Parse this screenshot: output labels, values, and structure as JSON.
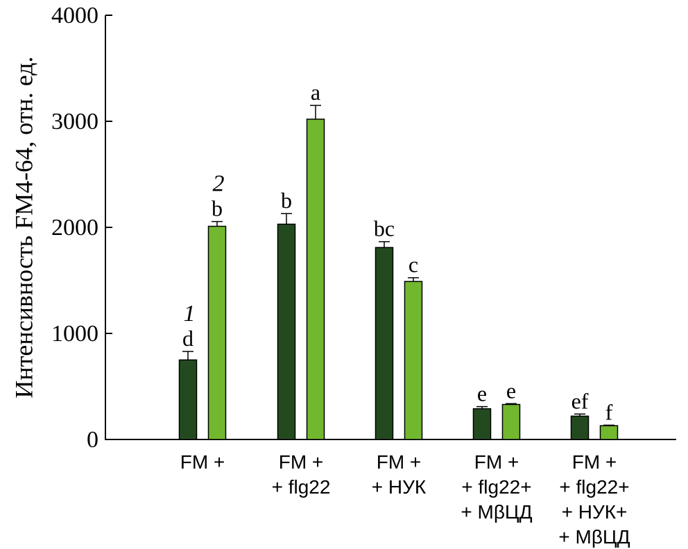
{
  "chart_data": {
    "type": "bar",
    "ylabel": "Интенсивность FM4-64, отн. ед.",
    "ylim": [
      0,
      4000
    ],
    "yticks": [
      "0",
      "1000",
      "2000",
      "3000",
      "4000"
    ],
    "categories": [
      [
        "FM +"
      ],
      [
        "FM +",
        "+ flg22"
      ],
      [
        "FM +",
        "+ НУК"
      ],
      [
        "FM +",
        "+ flg22+",
        "+ MβЦД"
      ],
      [
        "FM +",
        "+ flg22+",
        "+ НУК+",
        "+ MβЦД"
      ]
    ],
    "series": [
      {
        "name": "1",
        "color": "#234a1f",
        "values": [
          750,
          2030,
          1810,
          290,
          220
        ],
        "errors": [
          80,
          100,
          55,
          20,
          20
        ],
        "letters": [
          "d",
          "b",
          "bc",
          "e",
          "ef"
        ]
      },
      {
        "name": "2",
        "color": "#72b82e",
        "values": [
          2010,
          3020,
          1490,
          330,
          130
        ],
        "errors": [
          45,
          130,
          35,
          8,
          5
        ],
        "letters": [
          "b",
          "a",
          "c",
          "e",
          "f"
        ]
      }
    ],
    "grid": false,
    "legend": "series numbers written above the first group"
  }
}
